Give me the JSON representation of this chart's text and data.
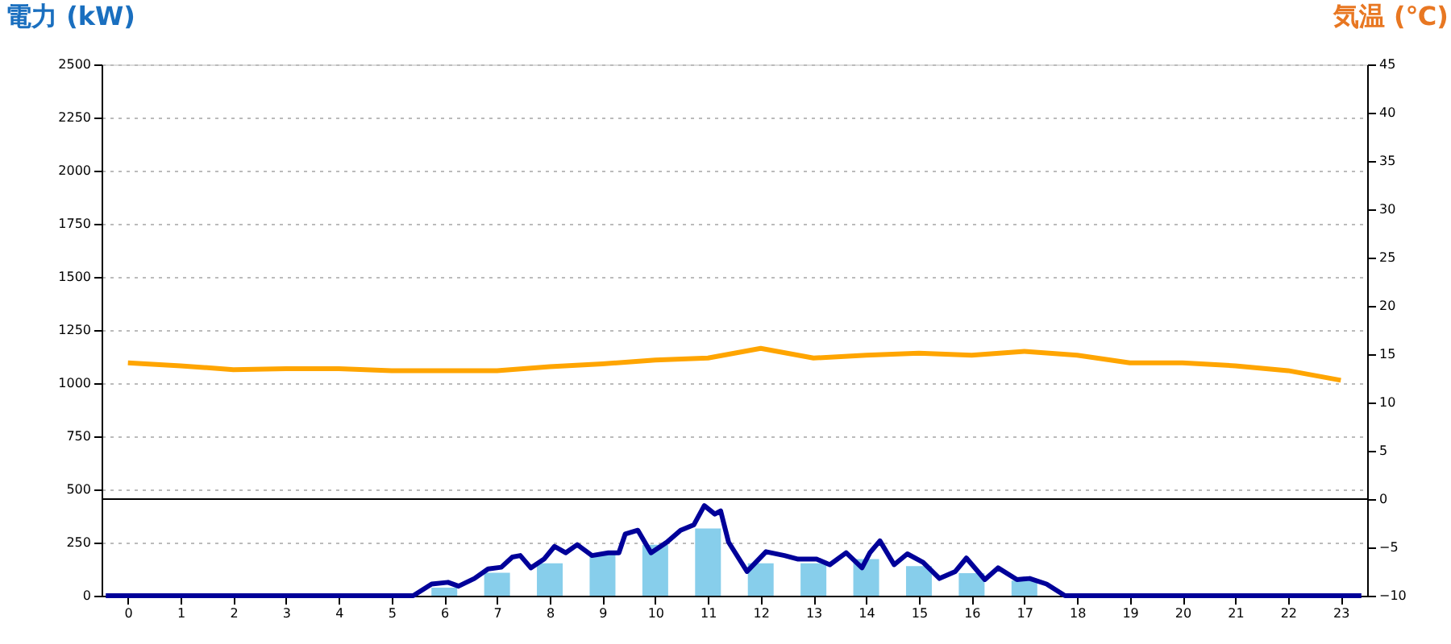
{
  "chart_data": {
    "type": "bar",
    "ylabel": "電力 (kW)",
    "y2label": "気温 (℃)",
    "x": [
      0,
      1,
      2,
      3,
      4,
      5,
      6,
      7,
      8,
      9,
      10,
      11,
      12,
      13,
      14,
      15,
      16,
      17,
      18,
      19,
      20,
      21,
      22,
      23
    ],
    "xlim": [
      -0.5,
      23.5
    ],
    "xticks": [
      0,
      1,
      2,
      3,
      4,
      5,
      6,
      7,
      8,
      9,
      10,
      11,
      12,
      13,
      14,
      15,
      16,
      17,
      18,
      19,
      20,
      21,
      22,
      23
    ],
    "ylim": [
      0,
      2500
    ],
    "yticks": [
      0,
      250,
      500,
      750,
      1000,
      1250,
      1500,
      1750,
      2000,
      2250,
      2500
    ],
    "y2lim": [
      -10,
      45
    ],
    "y2ticks": [
      -10,
      -5,
      0,
      5,
      10,
      15,
      20,
      25,
      30,
      35,
      40,
      45
    ],
    "grid": "y",
    "ref_lines": [
      {
        "axis": "y2",
        "value": 0,
        "color": "#000000"
      }
    ],
    "series": [
      {
        "color": "#87ceeb",
        "values": [
          0,
          0,
          0,
          0,
          0,
          0,
          38,
          108,
          152,
          197,
          240,
          316,
          152,
          152,
          172,
          139,
          106,
          71,
          0,
          0,
          0,
          0,
          0,
          0
        ]
      },
      {
        "type": "line",
        "color": "#000099",
        "x": [
          -0.42,
          5.41,
          5.76,
          6.07,
          6.27,
          6.57,
          6.83,
          7.08,
          7.29,
          7.44,
          7.64,
          7.89,
          8.09,
          8.3,
          8.52,
          8.8,
          9.11,
          9.31,
          9.43,
          9.67,
          9.92,
          10.22,
          10.48,
          10.73,
          10.93,
          11.13,
          11.24,
          11.39,
          11.74,
          12.1,
          12.45,
          12.71,
          13.06,
          13.31,
          13.62,
          13.92,
          14.07,
          14.26,
          14.53,
          14.78,
          15.08,
          15.39,
          15.69,
          15.9,
          16.25,
          16.5,
          16.86,
          17.1,
          17.42,
          17.77,
          23.39
        ],
        "values": [
          0,
          0,
          55,
          63,
          45,
          81,
          126,
          134,
          182,
          189,
          131,
          172,
          232,
          202,
          240,
          189,
          202,
          202,
          290,
          308,
          202,
          252,
          308,
          333,
          424,
          384,
          399,
          252,
          114,
          207,
          189,
          172,
          172,
          146,
          202,
          131,
          202,
          258,
          146,
          197,
          157,
          81,
          114,
          177,
          76,
          131,
          76,
          81,
          55,
          0,
          0
        ]
      },
      {
        "type": "line",
        "axis": "y2",
        "color": "#ffa500",
        "x": [
          0,
          1,
          2,
          3,
          4,
          5,
          6,
          7,
          8,
          9,
          10,
          11,
          12,
          13,
          14,
          15,
          16,
          17,
          18,
          19,
          20,
          21,
          22,
          23
        ],
        "values": [
          14.1,
          13.8,
          13.4,
          13.5,
          13.5,
          13.3,
          13.3,
          13.3,
          13.7,
          14.0,
          14.4,
          14.6,
          15.6,
          14.6,
          14.9,
          15.1,
          14.9,
          15.3,
          14.9,
          14.1,
          14.1,
          13.8,
          13.3,
          12.3
        ]
      }
    ]
  }
}
